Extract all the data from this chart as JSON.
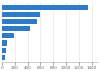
{
  "values": [
    1350,
    590,
    540,
    440,
    195,
    75,
    55,
    42
  ],
  "bar_color": "#2f7bc8",
  "background_color": "#ffffff",
  "grid_color": "#e8e8e8",
  "xlim": [
    0,
    1500
  ],
  "bar_height": 0.72,
  "figsize": [
    1.0,
    0.71
  ],
  "dpi": 100,
  "xticks": [
    0,
    200,
    400,
    600,
    800,
    1000,
    1200,
    1400
  ]
}
